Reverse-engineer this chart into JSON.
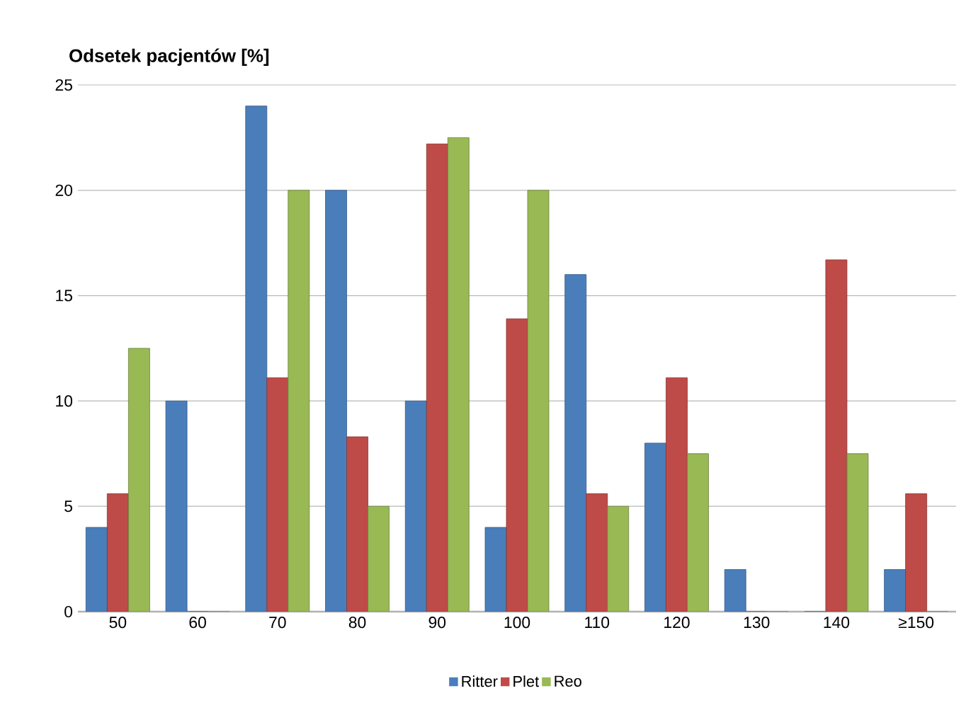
{
  "chart_data": {
    "type": "bar",
    "ylabel": "Odsetek pacjentów [%]",
    "categories": [
      "50",
      "60",
      "70",
      "80",
      "90",
      "100",
      "110",
      "120",
      "130",
      "140",
      "≥150"
    ],
    "series": [
      {
        "name": "Ritter",
        "color": "#4a7ebb",
        "values": [
          4,
          10,
          24,
          20,
          10,
          4,
          16,
          8,
          2,
          0,
          2
        ]
      },
      {
        "name": "Plet",
        "color": "#be4b48",
        "values": [
          5.6,
          0,
          11.1,
          8.3,
          22.2,
          13.9,
          5.6,
          11.1,
          0,
          16.7,
          5.6
        ]
      },
      {
        "name": "Reo",
        "color": "#98b954",
        "values": [
          12.5,
          0,
          20,
          5,
          22.5,
          20,
          5,
          7.5,
          0,
          7.5,
          0
        ]
      }
    ],
    "ylim": [
      0,
      25
    ],
    "yticks": [
      0,
      5,
      10,
      15,
      20,
      25
    ],
    "grid": "y",
    "legend": "bottom"
  }
}
